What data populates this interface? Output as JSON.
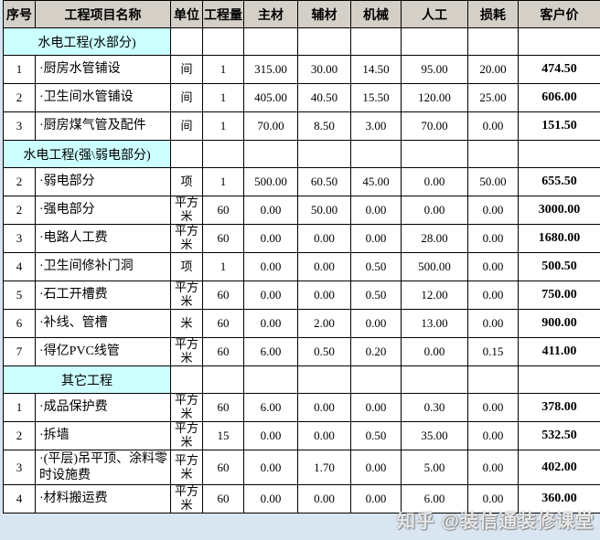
{
  "table": {
    "columns": [
      {
        "key": "no",
        "label": "序号"
      },
      {
        "key": "name",
        "label": "工程项目名称"
      },
      {
        "key": "unit",
        "label": "单位"
      },
      {
        "key": "qty",
        "label": "工程量"
      },
      {
        "key": "main",
        "label": "主材"
      },
      {
        "key": "aux",
        "label": "辅材"
      },
      {
        "key": "mach",
        "label": "机械"
      },
      {
        "key": "labor",
        "label": "人工"
      },
      {
        "key": "loss",
        "label": "损耗"
      },
      {
        "key": "price",
        "label": "客户价"
      }
    ],
    "rows": [
      {
        "type": "section",
        "title": "水电工程(水部分)"
      },
      {
        "type": "item",
        "no": "1",
        "name": "·厨房水管铺设",
        "unit": "间",
        "qty": "1",
        "main": "315.00",
        "aux": "30.00",
        "mach": "14.50",
        "labor": "95.00",
        "loss": "20.00",
        "price": "474.50"
      },
      {
        "type": "item",
        "no": "2",
        "name": "·卫生间水管铺设",
        "unit": "间",
        "qty": "1",
        "main": "405.00",
        "aux": "40.50",
        "mach": "15.50",
        "labor": "120.00",
        "loss": "25.00",
        "price": "606.00"
      },
      {
        "type": "item",
        "no": "3",
        "name": "·厨房煤气管及配件",
        "unit": "间",
        "qty": "1",
        "main": "70.00",
        "aux": "8.50",
        "mach": "3.00",
        "labor": "70.00",
        "loss": "0.00",
        "price": "151.50"
      },
      {
        "type": "section",
        "title": "水电工程(强\\弱电部分)"
      },
      {
        "type": "item",
        "no": "2",
        "name": "·弱电部分",
        "unit": "项",
        "qty": "1",
        "main": "500.00",
        "aux": "60.50",
        "mach": "45.00",
        "labor": "0.00",
        "loss": "50.00",
        "price": "655.50"
      },
      {
        "type": "item",
        "no": "2",
        "name": "·强电部分",
        "unit": "平方米",
        "qty": "60",
        "main": "0.00",
        "aux": "50.00",
        "mach": "0.00",
        "labor": "0.00",
        "loss": "0.00",
        "price": "3000.00"
      },
      {
        "type": "item",
        "no": "3",
        "name": "·电路人工费",
        "unit": "平方米",
        "qty": "60",
        "main": "0.00",
        "aux": "0.00",
        "mach": "0.00",
        "labor": "28.00",
        "loss": "0.00",
        "price": "1680.00"
      },
      {
        "type": "item",
        "no": "4",
        "name": "·卫生间修补门洞",
        "unit": "项",
        "qty": "1",
        "main": "0.00",
        "aux": "0.00",
        "mach": "0.50",
        "labor": "500.00",
        "loss": "0.00",
        "price": "500.50"
      },
      {
        "type": "item",
        "no": "5",
        "name": "·石工开槽费",
        "unit": "平方米",
        "qty": "60",
        "main": "0.00",
        "aux": "0.00",
        "mach": "0.50",
        "labor": "12.00",
        "loss": "0.00",
        "price": "750.00"
      },
      {
        "type": "item",
        "no": "6",
        "name": "·补线、管槽",
        "unit": "米",
        "qty": "60",
        "main": "0.00",
        "aux": "2.00",
        "mach": "0.00",
        "labor": "13.00",
        "loss": "0.00",
        "price": "900.00"
      },
      {
        "type": "item",
        "no": "7",
        "name": "·得亿PVC线管",
        "unit": "平方米",
        "qty": "60",
        "main": "6.00",
        "aux": "0.50",
        "mach": "0.20",
        "labor": "0.00",
        "loss": "0.15",
        "price": "411.00"
      },
      {
        "type": "section",
        "title": "其它工程"
      },
      {
        "type": "item",
        "no": "1",
        "name": "·成品保护费",
        "unit": "平方米",
        "qty": "60",
        "main": "6.00",
        "aux": "0.00",
        "mach": "0.00",
        "labor": "0.30",
        "loss": "0.00",
        "price": "378.00"
      },
      {
        "type": "item",
        "no": "2",
        "name": "·拆墙",
        "unit": "平方米",
        "qty": "15",
        "main": "0.00",
        "aux": "0.00",
        "mach": "0.50",
        "labor": "35.00",
        "loss": "0.00",
        "price": "532.50"
      },
      {
        "type": "item",
        "no": "3",
        "name": "·(平层)吊平顶、涂料零时设施费",
        "unit": "平方米",
        "qty": "60",
        "main": "0.00",
        "aux": "1.70",
        "mach": "0.00",
        "labor": "5.00",
        "loss": "0.00",
        "price": "402.00"
      },
      {
        "type": "item",
        "no": "4",
        "name": "·材料搬运费",
        "unit": "平方米",
        "qty": "60",
        "main": "0.00",
        "aux": "0.00",
        "mach": "0.00",
        "labor": "6.00",
        "loss": "0.00",
        "price": "360.00"
      }
    ]
  },
  "watermark": {
    "text": "知乎 @装信通装修课堂"
  },
  "colors": {
    "header_bg": "#d4d0c8",
    "section_bg": "#ccffff",
    "border": "#000000",
    "page_edge": "#d9e6f2",
    "price_text": "#000000"
  }
}
